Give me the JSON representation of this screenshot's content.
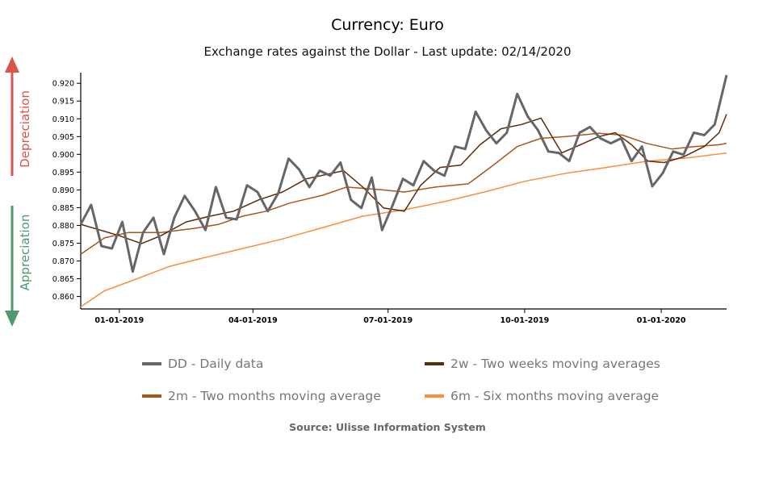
{
  "chart_data": {
    "type": "line",
    "title": "Currency: Euro",
    "subtitle": "Exchange rates against the Dollar - Last update: 02/14/2020",
    "source": "Source: Ulisse Information System",
    "side_labels": {
      "up": "Depreciation",
      "down": "Appreciation",
      "up_color": "#d9534f",
      "down_color": "#4e9a6e"
    },
    "xlim": [
      "2018-12-06",
      "2020-02-14"
    ],
    "ylim": [
      0.8565,
      0.923
    ],
    "yticks": [
      "0.860",
      "0.865",
      "0.870",
      "0.875",
      "0.880",
      "0.885",
      "0.890",
      "0.895",
      "0.900",
      "0.905",
      "0.910",
      "0.915",
      "0.920"
    ],
    "xticks": [
      {
        "date": "2019-01-01",
        "label": "01-01-2019"
      },
      {
        "date": "2019-04-01",
        "label": "04-01-2019"
      },
      {
        "date": "2019-07-01",
        "label": "07-01-2019"
      },
      {
        "date": "2019-10-01",
        "label": "10-01-2019"
      },
      {
        "date": "2020-01-01",
        "label": "01-01-2020"
      }
    ],
    "grid": false,
    "legend_placement": "bottom",
    "series": [
      {
        "name": "DD - Daily data",
        "color": "#666666",
        "width": 3,
        "points": [
          [
            "2018-12-06",
            0.8803
          ],
          [
            "2018-12-13",
            0.8858
          ],
          [
            "2018-12-20",
            0.8742
          ],
          [
            "2018-12-27",
            0.8735
          ],
          [
            "2019-01-03",
            0.881
          ],
          [
            "2019-01-10",
            0.867
          ],
          [
            "2019-01-17",
            0.878
          ],
          [
            "2019-01-24",
            0.8822
          ],
          [
            "2019-01-31",
            0.8719
          ],
          [
            "2019-02-07",
            0.8822
          ],
          [
            "2019-02-14",
            0.8883
          ],
          [
            "2019-02-21",
            0.884
          ],
          [
            "2019-02-28",
            0.8787
          ],
          [
            "2019-03-07",
            0.8908
          ],
          [
            "2019-03-14",
            0.8822
          ],
          [
            "2019-03-21",
            0.8817
          ],
          [
            "2019-03-28",
            0.8913
          ],
          [
            "2019-04-04",
            0.8894
          ],
          [
            "2019-04-11",
            0.884
          ],
          [
            "2019-04-18",
            0.889
          ],
          [
            "2019-04-25",
            0.8988
          ],
          [
            "2019-05-02",
            0.8958
          ],
          [
            "2019-05-09",
            0.8908
          ],
          [
            "2019-05-16",
            0.8954
          ],
          [
            "2019-05-23",
            0.894
          ],
          [
            "2019-05-30",
            0.8977
          ],
          [
            "2019-06-06",
            0.8872
          ],
          [
            "2019-06-13",
            0.8849
          ],
          [
            "2019-06-20",
            0.8935
          ],
          [
            "2019-06-27",
            0.8787
          ],
          [
            "2019-07-04",
            0.8856
          ],
          [
            "2019-07-11",
            0.8931
          ],
          [
            "2019-07-18",
            0.8913
          ],
          [
            "2019-07-25",
            0.8981
          ],
          [
            "2019-08-01",
            0.8954
          ],
          [
            "2019-08-08",
            0.894
          ],
          [
            "2019-08-15",
            0.9022
          ],
          [
            "2019-08-22",
            0.9015
          ],
          [
            "2019-08-29",
            0.912
          ],
          [
            "2019-09-05",
            0.9068
          ],
          [
            "2019-09-12",
            0.9031
          ],
          [
            "2019-09-19",
            0.9061
          ],
          [
            "2019-09-26",
            0.917
          ],
          [
            "2019-10-03",
            0.9107
          ],
          [
            "2019-10-10",
            0.9068
          ],
          [
            "2019-10-17",
            0.9008
          ],
          [
            "2019-10-24",
            0.9004
          ],
          [
            "2019-10-31",
            0.8981
          ],
          [
            "2019-11-07",
            0.9061
          ],
          [
            "2019-11-14",
            0.9077
          ],
          [
            "2019-11-21",
            0.9045
          ],
          [
            "2019-11-28",
            0.9031
          ],
          [
            "2019-12-05",
            0.9045
          ],
          [
            "2019-12-12",
            0.8981
          ],
          [
            "2019-12-19",
            0.9022
          ],
          [
            "2019-12-26",
            0.891
          ],
          [
            "2020-01-02",
            0.8947
          ],
          [
            "2020-01-09",
            0.9008
          ],
          [
            "2020-01-16",
            0.8999
          ],
          [
            "2020-01-23",
            0.9061
          ],
          [
            "2020-01-30",
            0.9054
          ],
          [
            "2020-02-06",
            0.9084
          ],
          [
            "2020-02-14",
            0.9223
          ]
        ]
      },
      {
        "name": "2w - Two weeks moving averages",
        "color": "#5c2a0a",
        "width": 1.5,
        "points": [
          [
            "2018-12-06",
            0.8803
          ],
          [
            "2019-01-01",
            0.8771
          ],
          [
            "2019-01-16",
            0.8749
          ],
          [
            "2019-01-29",
            0.8771
          ],
          [
            "2019-02-15",
            0.881
          ],
          [
            "2019-03-03",
            0.8826
          ],
          [
            "2019-03-19",
            0.884
          ],
          [
            "2019-04-05",
            0.8872
          ],
          [
            "2019-04-21",
            0.8894
          ],
          [
            "2019-05-07",
            0.8931
          ],
          [
            "2019-06-01",
            0.8954
          ],
          [
            "2019-06-14",
            0.8908
          ],
          [
            "2019-06-28",
            0.8849
          ],
          [
            "2019-07-12",
            0.884
          ],
          [
            "2019-07-23",
            0.8913
          ],
          [
            "2019-08-05",
            0.8963
          ],
          [
            "2019-08-19",
            0.897
          ],
          [
            "2019-09-01",
            0.9027
          ],
          [
            "2019-09-15",
            0.9072
          ],
          [
            "2019-09-29",
            0.9084
          ],
          [
            "2019-10-12",
            0.9102
          ],
          [
            "2019-10-26",
            0.9004
          ],
          [
            "2019-11-20",
            0.905
          ],
          [
            "2019-12-01",
            0.9061
          ],
          [
            "2019-12-12",
            0.9027
          ],
          [
            "2019-12-23",
            0.8981
          ],
          [
            "2020-01-03",
            0.8977
          ],
          [
            "2020-01-16",
            0.8993
          ],
          [
            "2020-01-30",
            0.9022
          ],
          [
            "2020-02-09",
            0.9061
          ],
          [
            "2020-02-14",
            0.9113
          ]
        ]
      },
      {
        "name": "2m - Two months moving average",
        "color": "#a9561c",
        "width": 1.5,
        "points": [
          [
            "2018-12-06",
            0.8719
          ],
          [
            "2018-12-22",
            0.8765
          ],
          [
            "2019-01-07",
            0.878
          ],
          [
            "2019-01-29",
            0.878
          ],
          [
            "2019-02-21",
            0.8792
          ],
          [
            "2019-03-09",
            0.8803
          ],
          [
            "2019-03-25",
            0.8826
          ],
          [
            "2019-04-10",
            0.884
          ],
          [
            "2019-04-26",
            0.8863
          ],
          [
            "2019-05-18",
            0.8885
          ],
          [
            "2019-06-03",
            0.8908
          ],
          [
            "2019-06-25",
            0.8901
          ],
          [
            "2019-07-12",
            0.8894
          ],
          [
            "2019-08-02",
            0.8908
          ],
          [
            "2019-08-24",
            0.8917
          ],
          [
            "2019-09-10",
            0.897
          ],
          [
            "2019-09-26",
            0.9022
          ],
          [
            "2019-10-12",
            0.9045
          ],
          [
            "2019-10-29",
            0.905
          ],
          [
            "2019-11-20",
            0.9059
          ],
          [
            "2019-12-06",
            0.9054
          ],
          [
            "2019-12-22",
            0.9031
          ],
          [
            "2020-01-08",
            0.9015
          ],
          [
            "2020-01-24",
            0.9022
          ],
          [
            "2020-02-09",
            0.9027
          ],
          [
            "2020-02-14",
            0.9031
          ]
        ]
      },
      {
        "name": "6m - Six months moving average",
        "color": "#f98e3f",
        "width": 1.5,
        "points": [
          [
            "2018-12-06",
            0.8571
          ],
          [
            "2018-12-22",
            0.8616
          ],
          [
            "2019-01-13",
            0.865
          ],
          [
            "2019-02-04",
            0.8685
          ],
          [
            "2019-02-26",
            0.8708
          ],
          [
            "2019-03-25",
            0.8735
          ],
          [
            "2019-04-21",
            0.8762
          ],
          [
            "2019-05-18",
            0.8794
          ],
          [
            "2019-06-14",
            0.8826
          ],
          [
            "2019-07-12",
            0.8844
          ],
          [
            "2019-08-08",
            0.8867
          ],
          [
            "2019-09-04",
            0.8894
          ],
          [
            "2019-10-01",
            0.8924
          ],
          [
            "2019-10-29",
            0.8947
          ],
          [
            "2019-11-25",
            0.8963
          ],
          [
            "2019-12-23",
            0.8981
          ],
          [
            "2020-01-19",
            0.899
          ],
          [
            "2020-02-14",
            0.9004
          ]
        ]
      }
    ]
  }
}
